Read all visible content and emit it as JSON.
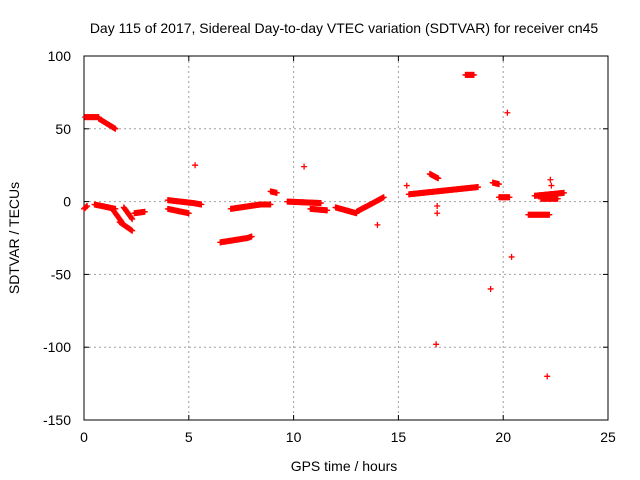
{
  "chart_data": {
    "type": "scatter",
    "title": "Day 115 of 2017, Sidereal Day-to-day VTEC variation (SDTVAR) for receiver cn45",
    "xlabel": "GPS time / hours",
    "ylabel": "SDTVAR / TECUs",
    "xlim": [
      0,
      25
    ],
    "ylim": [
      -150,
      100
    ],
    "xticks": [
      0,
      5,
      10,
      15,
      20,
      25
    ],
    "yticks": [
      -150,
      -100,
      -50,
      0,
      50,
      100
    ],
    "grid": true,
    "marker": "+",
    "series_color": "#ff0000",
    "segments": [
      {
        "name": "arc-a",
        "x0": 0.0,
        "x1": 0.15,
        "y0": -5,
        "y1": -3
      },
      {
        "name": "arc-b",
        "x0": 0.05,
        "x1": 0.7,
        "y0": 58,
        "y1": 58
      },
      {
        "name": "arc-c",
        "x0": 0.7,
        "x1": 1.5,
        "y0": 57,
        "y1": 50
      },
      {
        "name": "arc-d",
        "x0": 0.5,
        "x1": 1.5,
        "y0": -2,
        "y1": -5
      },
      {
        "name": "arc-e",
        "x0": 1.4,
        "x1": 1.8,
        "y0": -6,
        "y1": -14
      },
      {
        "name": "arc-f",
        "x0": 1.7,
        "x1": 2.3,
        "y0": -14,
        "y1": -20
      },
      {
        "name": "arc-g",
        "x0": 1.9,
        "x1": 2.3,
        "y0": -4,
        "y1": -12
      },
      {
        "name": "arc-h",
        "x0": 2.4,
        "x1": 2.9,
        "y0": -8,
        "y1": -7
      },
      {
        "name": "arc-i",
        "x0": 4.0,
        "x1": 5.2,
        "y0": 1,
        "y1": -1
      },
      {
        "name": "arc-j",
        "x0": 4.0,
        "x1": 5.0,
        "y0": -5,
        "y1": -8
      },
      {
        "name": "arc-k",
        "x0": 5.2,
        "x1": 5.6,
        "y0": -1,
        "y1": -2
      },
      {
        "name": "arc-l",
        "x0": 6.5,
        "x1": 7.8,
        "y0": -28,
        "y1": -25
      },
      {
        "name": "arc-m",
        "x0": 7.8,
        "x1": 8.0,
        "y0": -25,
        "y1": -24
      },
      {
        "name": "arc-n",
        "x0": 7.0,
        "x1": 8.4,
        "y0": -5,
        "y1": -2
      },
      {
        "name": "arc-o",
        "x0": 8.4,
        "x1": 8.9,
        "y0": -2,
        "y1": -2
      },
      {
        "name": "arc-p",
        "x0": 8.9,
        "x1": 9.2,
        "y0": 7,
        "y1": 6
      },
      {
        "name": "arc-q",
        "x0": 9.7,
        "x1": 11.3,
        "y0": 0,
        "y1": -1
      },
      {
        "name": "arc-r",
        "x0": 10.8,
        "x1": 11.6,
        "y0": -5,
        "y1": -6
      },
      {
        "name": "arc-s",
        "x0": 12.0,
        "x1": 13.0,
        "y0": -4,
        "y1": -8
      },
      {
        "name": "arc-t",
        "x0": 13.0,
        "x1": 14.3,
        "y0": -7,
        "y1": 3
      },
      {
        "name": "arc-u",
        "x0": 15.5,
        "x1": 18.8,
        "y0": 5,
        "y1": 10
      },
      {
        "name": "arc-v",
        "x0": 16.5,
        "x1": 16.9,
        "y0": 19,
        "y1": 16
      },
      {
        "name": "arc-w",
        "x0": 18.2,
        "x1": 18.6,
        "y0": 87,
        "y1": 87
      },
      {
        "name": "arc-x",
        "x0": 19.5,
        "x1": 19.8,
        "y0": 13,
        "y1": 12
      },
      {
        "name": "arc-y",
        "x0": 19.8,
        "x1": 20.3,
        "y0": 3,
        "y1": 3
      },
      {
        "name": "arc-z",
        "x0": 21.2,
        "x1": 22.2,
        "y0": -9,
        "y1": -9
      },
      {
        "name": "arc-aa",
        "x0": 21.5,
        "x1": 22.9,
        "y0": 4,
        "y1": 6
      },
      {
        "name": "arc-ab",
        "x0": 21.8,
        "x1": 22.6,
        "y0": 2,
        "y1": 2
      }
    ],
    "isolated_points": [
      {
        "x": 5.3,
        "y": 25
      },
      {
        "x": 10.5,
        "y": 24
      },
      {
        "x": 14.0,
        "y": -16
      },
      {
        "x": 15.4,
        "y": 11
      },
      {
        "x": 16.8,
        "y": -98
      },
      {
        "x": 16.85,
        "y": -3
      },
      {
        "x": 16.85,
        "y": -8
      },
      {
        "x": 19.4,
        "y": -60
      },
      {
        "x": 20.2,
        "y": 61
      },
      {
        "x": 20.4,
        "y": -38
      },
      {
        "x": 22.1,
        "y": -120
      },
      {
        "x": 22.25,
        "y": 15
      },
      {
        "x": 22.3,
        "y": 11
      }
    ]
  }
}
